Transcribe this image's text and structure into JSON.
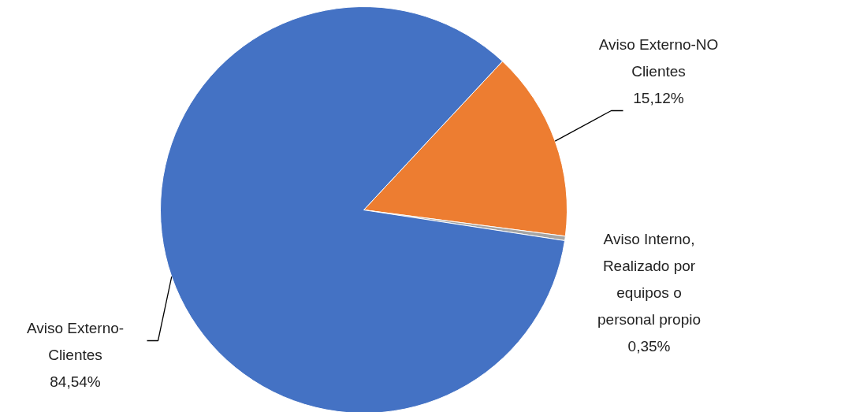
{
  "chart_data": {
    "type": "pie",
    "categories": [
      "Aviso Externo-NO Clientes",
      "Aviso Interno, Realizado por equipos o personal propio",
      "Aviso Externo-Clientes"
    ],
    "values": [
      15.12,
      0.35,
      84.54
    ],
    "colors": [
      "#ed7d31",
      "#a5a5a5",
      "#4472c4"
    ],
    "value_labels": [
      "15,12%",
      "0,35%",
      "84,54%"
    ],
    "legend": false
  }
}
